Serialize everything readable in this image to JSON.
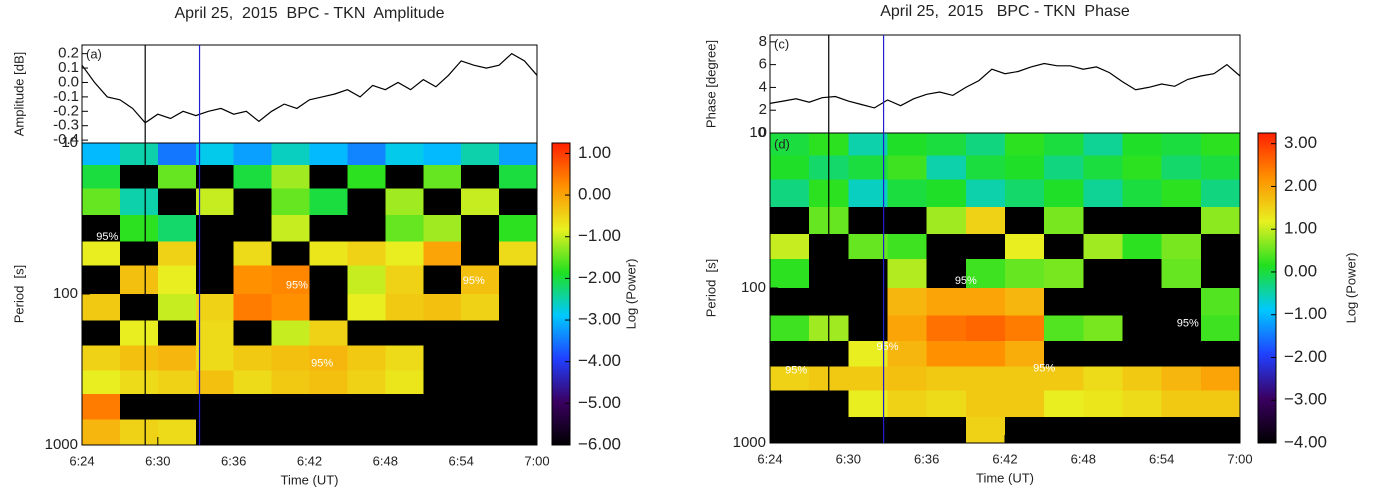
{
  "chart_data": [
    {
      "type": "wavelet",
      "title": "April 25,  2015  BPC - TKN  Amplitude",
      "x_label": "Time (UT)",
      "xlim": [
        384,
        420
      ],
      "xticks": [
        {
          "value": 384,
          "label": "6:24"
        },
        {
          "value": 390,
          "label": "6:30"
        },
        {
          "value": 396,
          "label": "6:36"
        },
        {
          "value": 402,
          "label": "6:42"
        },
        {
          "value": 408,
          "label": "6:48"
        },
        {
          "value": 414,
          "label": "6:54"
        },
        {
          "value": 420,
          "label": "7:00"
        }
      ],
      "markers": [
        {
          "x": 389,
          "color": "#000000"
        },
        {
          "x": 393.3,
          "color": "#1f1fd0"
        }
      ],
      "time_series": {
        "label": "(a)",
        "y_label": "Amplitude [dB]",
        "color": "#000000",
        "ylim": [
          -0.42,
          0.26
        ],
        "yticks": [
          0.2,
          0.1,
          {
            "value": 0,
            "label": "0.0"
          },
          -0.1,
          -0.2,
          -0.3,
          -0.4
        ],
        "x": [
          384,
          385,
          386,
          387,
          388,
          389,
          390,
          391,
          392,
          393,
          394,
          395,
          396,
          397,
          398,
          399,
          400,
          401,
          402,
          403,
          404,
          405,
          406,
          407,
          408,
          409,
          410,
          411,
          412,
          413,
          414,
          415,
          416,
          417,
          418,
          419,
          420
        ],
        "values": [
          0.12,
          0.0,
          -0.1,
          -0.12,
          -0.18,
          -0.28,
          -0.22,
          -0.25,
          -0.2,
          -0.23,
          -0.2,
          -0.18,
          -0.22,
          -0.2,
          -0.27,
          -0.2,
          -0.15,
          -0.18,
          -0.12,
          -0.1,
          -0.08,
          -0.05,
          -0.1,
          -0.02,
          -0.05,
          0.0,
          -0.05,
          0.02,
          -0.03,
          0.05,
          0.15,
          0.12,
          0.1,
          0.12,
          0.2,
          0.15,
          0.05
        ]
      },
      "spectrum": {
        "y_label": "Period  [s]",
        "log_scale": true,
        "y_inverted": true,
        "ylim": [
          10,
          1000
        ],
        "yticks": [
          10,
          100,
          1000
        ],
        "time_bins": [
          384,
          387,
          390,
          393,
          396,
          399,
          402,
          405,
          408,
          411,
          414,
          417,
          420
        ],
        "period_bins": [
          10,
          14,
          20,
          30,
          45,
          65,
          100,
          150,
          220,
          320,
          460,
          680,
          1000
        ],
        "values": [
          [
            -3,
            -2.5,
            -3.5,
            -2.8,
            -3.2,
            -2.6,
            -3,
            -3.4,
            -2.8,
            -3,
            -2.5,
            -3.2
          ],
          [
            -2,
            -6,
            -1.5,
            -6,
            -2,
            -1.2,
            -6,
            -1.8,
            -6,
            -1.5,
            -6,
            -2
          ],
          [
            -1.5,
            -2.5,
            -6,
            -1,
            -6,
            -1.5,
            -2,
            -6,
            -1.2,
            -6,
            -1,
            -6
          ],
          [
            -6,
            -1.8,
            -2.2,
            -6,
            -6,
            -1,
            -6,
            -6,
            -1.5,
            -1.2,
            -6,
            -1.8
          ],
          [
            -0.8,
            -6,
            -0.5,
            -6,
            -0.6,
            -6,
            -0.7,
            -0.5,
            -0.8,
            0.0,
            -6,
            -0.6
          ],
          [
            -6,
            -0.3,
            -0.8,
            -6,
            0.2,
            0.3,
            -6,
            -1,
            -0.5,
            -6,
            -0.3,
            -6
          ],
          [
            -0.4,
            -6,
            -1,
            -0.5,
            0.4,
            0.2,
            -6,
            -0.8,
            -0.4,
            -0.3,
            -0.5,
            -6
          ],
          [
            -6,
            -0.8,
            -6,
            -0.6,
            -6,
            -1,
            -0.5,
            -6,
            -6,
            -6,
            -6,
            -6
          ],
          [
            -0.5,
            -0.3,
            -0.2,
            -0.6,
            -0.4,
            -0.3,
            -0.2,
            -0.4,
            -0.6,
            -6,
            -6,
            -6
          ],
          [
            -0.8,
            -0.6,
            -0.5,
            -0.3,
            -0.6,
            -0.4,
            -0.3,
            -0.5,
            -0.7,
            -6,
            -6,
            -6
          ],
          [
            0.4,
            -6,
            -6,
            -6,
            -6,
            -6,
            -6,
            -6,
            -6,
            -6,
            -6,
            -6
          ],
          [
            -0.2,
            -0.5,
            -0.6,
            -6,
            -6,
            -6,
            -6,
            -6,
            -6,
            -6,
            -6,
            -6
          ]
        ],
        "annotations": [
          {
            "text": "95%",
            "x": 386,
            "y": 42
          },
          {
            "text": "95%",
            "x": 401,
            "y": 88
          },
          {
            "text": "95%",
            "x": 415,
            "y": 82
          },
          {
            "text": "95%",
            "x": 403,
            "y": 290
          }
        ]
      },
      "colorbar": {
        "label": "Log (Power)",
        "zlim": [
          -6,
          1.25
        ],
        "colormap": [
          "#000000",
          "#3a0060",
          "#2040ff",
          "#00c8ff",
          "#20e020",
          "#e8f020",
          "#ff9000",
          "#ff2000"
        ],
        "ticks": [
          {
            "value": 1,
            "label": "1.00"
          },
          {
            "value": 0,
            "label": "0.00"
          },
          {
            "value": -1,
            "label": "−1.00"
          },
          {
            "value": -2,
            "label": "−2.00"
          },
          {
            "value": -3,
            "label": "−3.00"
          },
          {
            "value": -4,
            "label": "−4.00"
          },
          {
            "value": -5,
            "label": "−5.00"
          },
          {
            "value": -6,
            "label": "−6.00"
          }
        ]
      }
    },
    {
      "type": "wavelet",
      "title": "April 25,  2015   BPC - TKN  Phase",
      "x_label": "Time (UT)",
      "xlim": [
        384,
        420
      ],
      "xticks": [
        {
          "value": 384,
          "label": "6:24"
        },
        {
          "value": 390,
          "label": "6:30"
        },
        {
          "value": 396,
          "label": "6:36"
        },
        {
          "value": 402,
          "label": "6:42"
        },
        {
          "value": 408,
          "label": "6:48"
        },
        {
          "value": 414,
          "label": "6:54"
        },
        {
          "value": 420,
          "label": "7:00"
        }
      ],
      "markers": [
        {
          "x": 388.5,
          "color": "#000000"
        },
        {
          "x": 392.7,
          "color": "#1f1fd0"
        }
      ],
      "time_series": {
        "label": "(c)",
        "y_label": "Phase [degree]",
        "color": "#000000",
        "ylim": [
          0,
          8.6
        ],
        "yticks": [
          8,
          6,
          4,
          2,
          0
        ],
        "x": [
          384,
          385,
          386,
          387,
          388,
          389,
          390,
          391,
          392,
          393,
          394,
          395,
          396,
          397,
          398,
          399,
          400,
          401,
          402,
          403,
          404,
          405,
          406,
          407,
          408,
          409,
          410,
          411,
          412,
          413,
          414,
          415,
          416,
          417,
          418,
          419,
          420
        ],
        "values": [
          2.6,
          2.8,
          3.0,
          2.7,
          3.1,
          3.2,
          2.8,
          2.5,
          2.2,
          2.9,
          2.4,
          3.0,
          3.4,
          3.6,
          3.3,
          4.0,
          4.6,
          5.6,
          5.2,
          5.4,
          5.8,
          6.1,
          5.9,
          5.9,
          5.6,
          5.8,
          5.3,
          4.5,
          3.8,
          4.0,
          4.3,
          4.1,
          4.7,
          5.0,
          5.2,
          6.0,
          5.0
        ]
      },
      "spectrum": {
        "label": "(d)",
        "y_label": "Period  [s]",
        "log_scale": true,
        "y_inverted": true,
        "ylim": [
          10,
          1000
        ],
        "yticks": [
          10,
          100,
          1000
        ],
        "time_bins": [
          384,
          387,
          390,
          393,
          396,
          399,
          402,
          405,
          408,
          411,
          414,
          417,
          420
        ],
        "period_bins": [
          10,
          14,
          20,
          30,
          45,
          65,
          100,
          150,
          220,
          320,
          460,
          680,
          1000
        ],
        "values": [
          [
            0,
            0.2,
            -0.5,
            0.1,
            0,
            -0.3,
            0.2,
            0,
            -0.4,
            0.1,
            0,
            0.2
          ],
          [
            0.1,
            -0.2,
            0,
            0.3,
            -0.5,
            0,
            0.1,
            -0.3,
            0,
            0.2,
            -0.2,
            0
          ],
          [
            -0.3,
            0.2,
            -0.6,
            0,
            0.1,
            -0.5,
            -0.2,
            0.1,
            -0.4,
            0,
            0.2,
            -0.3
          ],
          [
            -4,
            0.5,
            -4,
            -4,
            0.8,
            1.5,
            -4,
            0.6,
            -4,
            -4,
            -4,
            0.7
          ],
          [
            1,
            -4,
            0.5,
            0.3,
            -4,
            -4,
            1.2,
            -4,
            0.8,
            0.2,
            0.6,
            -4
          ],
          [
            0.2,
            -4,
            -4,
            0.9,
            -4,
            0.3,
            0.5,
            0.6,
            -4,
            -4,
            0.5,
            -4
          ],
          [
            -4,
            -4,
            -4,
            1.8,
            2,
            2,
            1.8,
            -4,
            -4,
            -4,
            -4,
            0.4
          ],
          [
            0.3,
            0.8,
            -4,
            2,
            2.5,
            2.6,
            2.4,
            0.4,
            0.6,
            -4,
            -4,
            0.3
          ],
          [
            -4,
            -4,
            1.2,
            1.8,
            2.2,
            2.2,
            1.9,
            -4,
            -4,
            -4,
            -4,
            -4
          ],
          [
            1.5,
            1.6,
            1.6,
            1.7,
            1.6,
            1.6,
            1.6,
            1.6,
            1.4,
            1.6,
            1.8,
            2.0
          ],
          [
            -4,
            -4,
            1.2,
            1.5,
            1.4,
            1.6,
            1.6,
            1.2,
            1.3,
            1.4,
            1.6,
            1.6
          ],
          [
            -4,
            -4,
            -4,
            -4,
            -4,
            1.5,
            -4,
            -4,
            -4,
            -4,
            -4,
            -4
          ]
        ],
        "annotations": [
          {
            "text": "95%",
            "x": 399,
            "y": 90
          },
          {
            "text": "95%",
            "x": 393,
            "y": 240
          },
          {
            "text": "95%",
            "x": 416,
            "y": 170
          },
          {
            "text": "95%",
            "x": 386,
            "y": 340
          },
          {
            "text": "95%",
            "x": 405,
            "y": 330
          }
        ]
      },
      "colorbar": {
        "label": "Log (Power)",
        "zlim": [
          -4,
          3.25
        ],
        "colormap": [
          "#000000",
          "#3a0060",
          "#2040ff",
          "#00c8ff",
          "#20e020",
          "#e8f020",
          "#ff9000",
          "#ff2000"
        ],
        "ticks": [
          {
            "value": 3,
            "label": "3.00"
          },
          {
            "value": 2,
            "label": "2.00"
          },
          {
            "value": 1,
            "label": "1.00"
          },
          {
            "value": 0,
            "label": "0.00"
          },
          {
            "value": -1,
            "label": "−1.00"
          },
          {
            "value": -2,
            "label": "−2.00"
          },
          {
            "value": -3,
            "label": "−3.00"
          },
          {
            "value": -4,
            "label": "−4.00"
          }
        ]
      }
    }
  ]
}
